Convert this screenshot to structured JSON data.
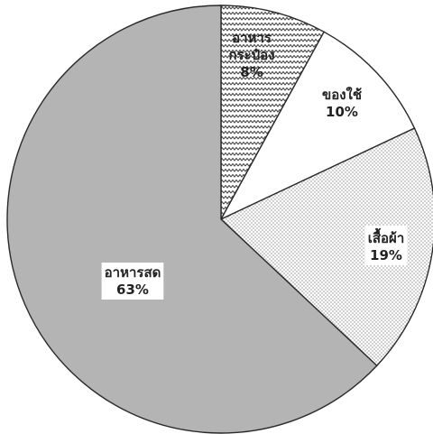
{
  "chart_data": {
    "type": "pie",
    "title": "",
    "slices": [
      {
        "label_lines": [
          "อาหาร",
          "กระป๋อง"
        ],
        "percent_label": "8%",
        "value": 8,
        "fill": "zigzag",
        "label_box": false
      },
      {
        "label_lines": [
          "ของใช้"
        ],
        "percent_label": "10%",
        "value": 10,
        "fill": "white",
        "label_box": false
      },
      {
        "label_lines": [
          "เสื้อผ้า"
        ],
        "percent_label": "19%",
        "value": 19,
        "fill": "dots",
        "label_box": true
      },
      {
        "label_lines": [
          "อาหารสด"
        ],
        "percent_label": "63%",
        "value": 63,
        "fill": "gray",
        "label_box": true
      }
    ],
    "start_angle": "12 o'clock",
    "direction": "clockwise",
    "legend": "none"
  },
  "colors": {
    "outline": "#2a2a2a",
    "gray_fill": "#b4b4b4",
    "white_fill": "#ffffff",
    "dots_background": "#ffffff",
    "dots_dot": "#8a8a8a",
    "zigzag_line": "#4a4a4a",
    "label_box": "#ffffff",
    "text": "#222222"
  }
}
